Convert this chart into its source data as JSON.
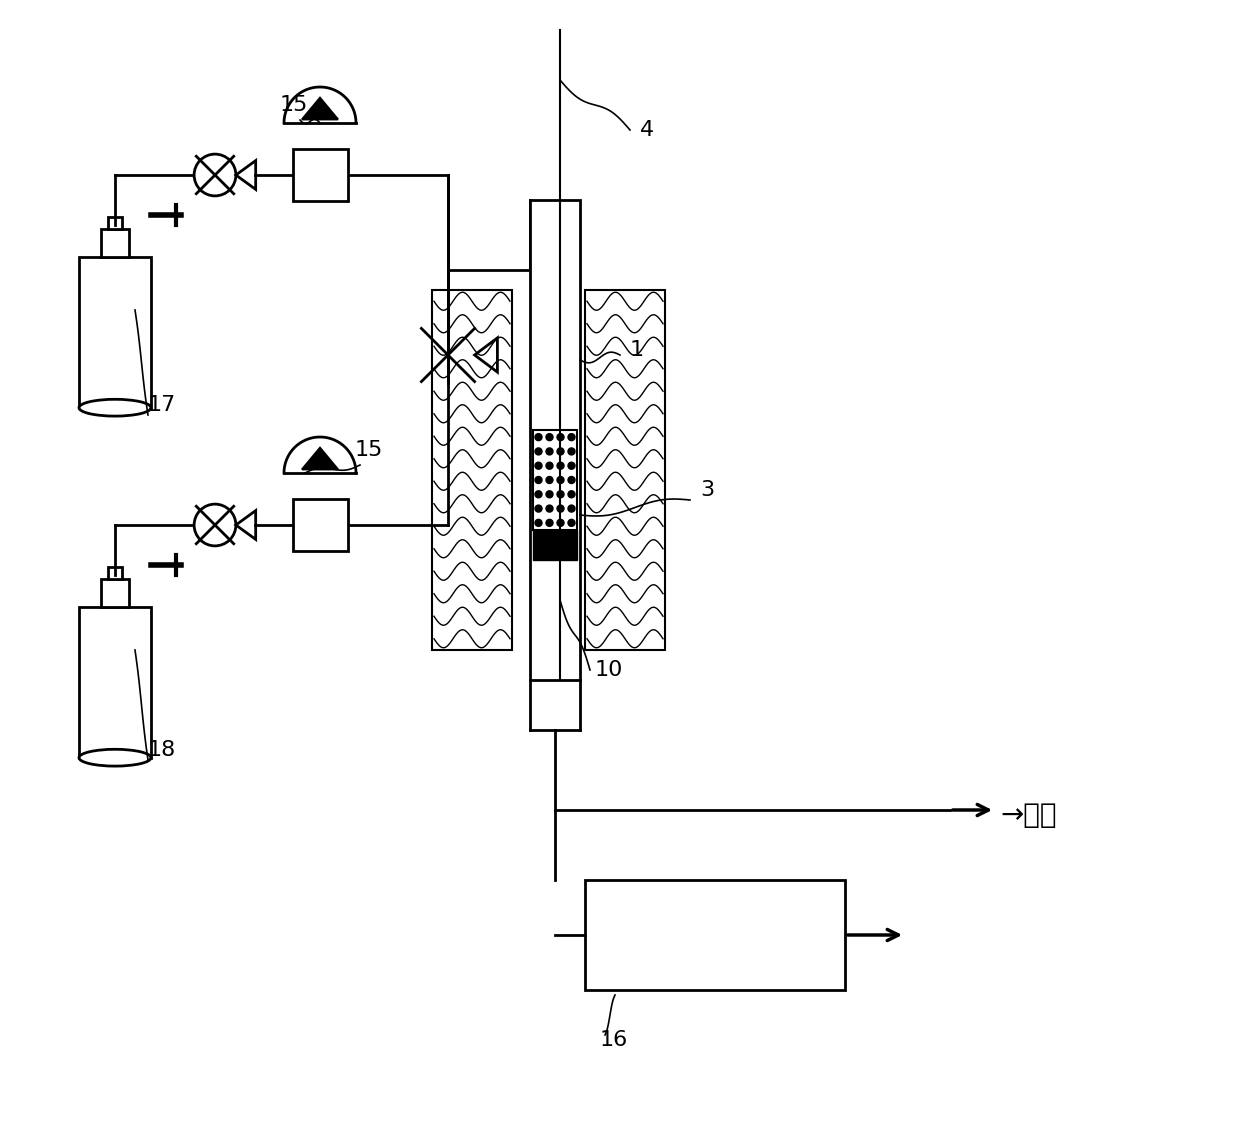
{
  "background_color": "#ffffff",
  "line_color": "#000000",
  "label_fontsize": 16,
  "exit_label": "出口"
}
